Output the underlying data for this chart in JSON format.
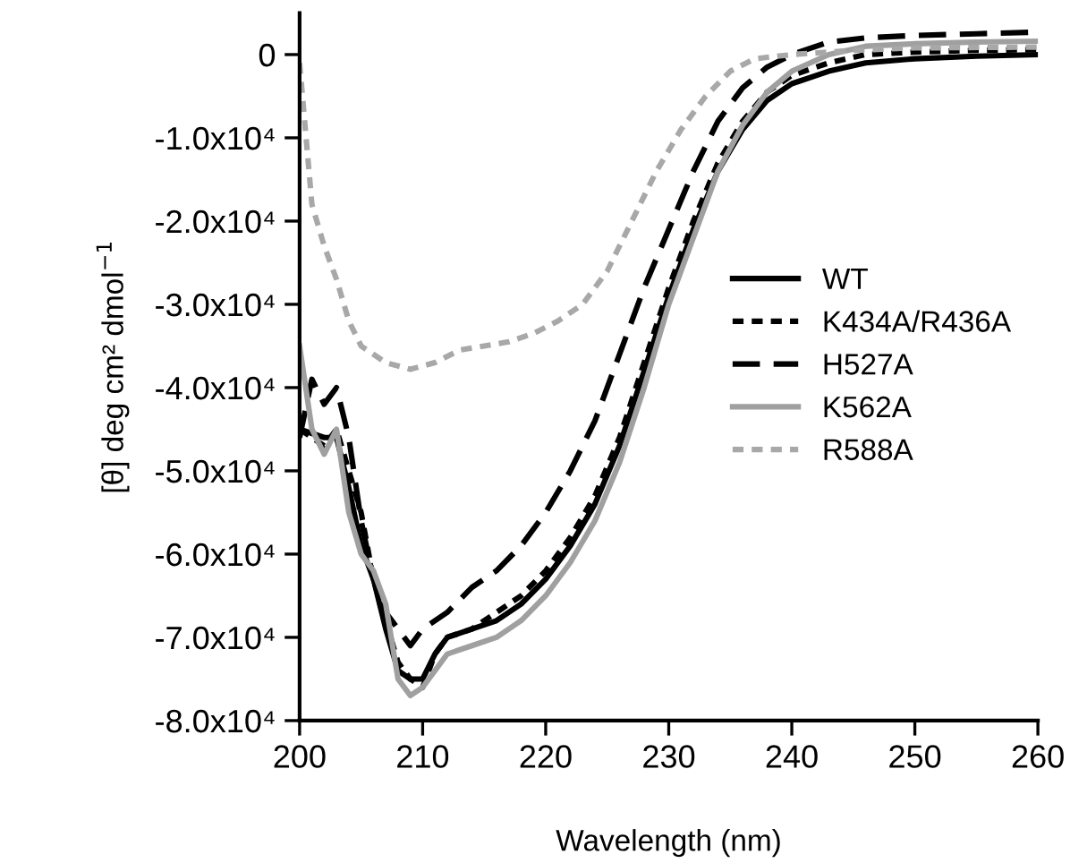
{
  "chart_data": {
    "type": "line",
    "xlabel": "Wavelength (nm)",
    "ylabel": "[θ] deg cm² dmol$^{−1}$",
    "xlim": [
      200,
      260
    ],
    "ylim": [
      -80000,
      5000
    ],
    "xticks": [
      200,
      210,
      220,
      230,
      240,
      250,
      260
    ],
    "yticks": [
      {
        "value": 0,
        "label": "0"
      },
      {
        "value": -10000,
        "label": "-1.0x10⁴"
      },
      {
        "value": -20000,
        "label": "-2.0x10⁴"
      },
      {
        "value": -30000,
        "label": "-3.0x10⁴"
      },
      {
        "value": -40000,
        "label": "-4.0x10⁴"
      },
      {
        "value": -50000,
        "label": "-5.0x10⁴"
      },
      {
        "value": -60000,
        "label": "-6.0x10⁴"
      },
      {
        "value": -70000,
        "label": "-7.0x10⁴"
      },
      {
        "value": -80000,
        "label": "-8.0x10⁴"
      }
    ],
    "grid": false,
    "legend": "center right",
    "marker": "none",
    "series": [
      {
        "name": "WT",
        "color": "#000000",
        "line_style": "solid",
        "x": [
          200,
          202,
          203,
          204,
          205,
          206,
          207,
          208,
          209,
          210,
          211,
          212,
          214,
          216,
          218,
          220,
          222,
          224,
          226,
          228,
          230,
          232,
          234,
          236,
          238,
          240,
          243,
          246,
          250,
          255,
          260
        ],
        "values": [
          -45000,
          -46000,
          -46000,
          -52000,
          -59000,
          -63000,
          -69000,
          -74000,
          -75000,
          -75000,
          -72000,
          -70000,
          -69000,
          -68000,
          -66000,
          -63000,
          -59000,
          -54000,
          -47000,
          -38000,
          -29000,
          -21000,
          -14000,
          -9000,
          -5500,
          -3500,
          -2000,
          -1000,
          -500,
          -200,
          0
        ]
      },
      {
        "name": "K434A/R436A",
        "color": "#000000",
        "line_style": "dotted",
        "x": [
          200,
          201,
          202,
          203,
          204,
          205,
          206,
          207,
          208,
          209,
          210,
          211,
          212,
          214,
          216,
          218,
          220,
          222,
          224,
          226,
          228,
          230,
          232,
          234,
          236,
          238,
          240,
          243,
          246,
          250,
          255,
          260
        ],
        "values": [
          -45000,
          -46000,
          -47000,
          -45000,
          -50000,
          -55000,
          -63000,
          -68000,
          -73000,
          -75000,
          -76000,
          -72000,
          -70000,
          -69000,
          -67000,
          -65000,
          -62000,
          -58000,
          -53000,
          -46000,
          -37000,
          -28000,
          -20000,
          -13000,
          -8000,
          -4500,
          -2500,
          -1000,
          0,
          300,
          500,
          600
        ]
      },
      {
        "name": "H527A",
        "color": "#000000",
        "line_style": "dashed",
        "x": [
          200,
          201,
          202,
          203,
          204,
          205,
          206,
          207,
          208,
          209,
          210,
          212,
          214,
          216,
          218,
          220,
          222,
          224,
          226,
          228,
          230,
          232,
          234,
          236,
          238,
          240,
          243,
          246,
          250,
          255,
          260
        ],
        "values": [
          -46000,
          -39000,
          -42000,
          -40000,
          -46000,
          -56000,
          -63000,
          -67000,
          -69000,
          -71000,
          -69000,
          -67000,
          -64000,
          -62000,
          -59000,
          -55000,
          -50000,
          -44000,
          -36000,
          -28000,
          -21000,
          -14000,
          -8000,
          -4000,
          -1500,
          0,
          1500,
          2000,
          2300,
          2500,
          2700
        ]
      },
      {
        "name": "K562A",
        "color": "#a0a0a0",
        "line_style": "solid",
        "x": [
          200,
          201,
          202,
          203,
          204,
          205,
          206,
          207,
          208,
          209,
          210,
          211,
          212,
          214,
          216,
          218,
          220,
          222,
          224,
          226,
          228,
          230,
          232,
          234,
          236,
          238,
          240,
          243,
          246,
          250,
          255,
          260
        ],
        "values": [
          -35000,
          -45000,
          -48000,
          -45000,
          -55000,
          -60000,
          -62000,
          -66000,
          -75000,
          -77000,
          -76000,
          -74000,
          -72000,
          -71000,
          -70000,
          -68000,
          -65000,
          -61000,
          -56000,
          -49000,
          -40000,
          -30000,
          -22000,
          -14000,
          -8500,
          -4500,
          -2000,
          0,
          1000,
          1300,
          1500,
          1600
        ]
      },
      {
        "name": "R588A",
        "color": "#a8a8a8",
        "line_style": "dotted",
        "x": [
          200,
          201,
          202,
          203,
          204,
          205,
          207,
          209,
          211,
          213,
          215,
          217,
          219,
          221,
          223,
          225,
          227,
          229,
          231,
          233,
          235,
          237,
          240,
          245,
          250,
          260
        ],
        "values": [
          -1000,
          -18000,
          -23000,
          -27000,
          -32000,
          -35000,
          -37000,
          -37800,
          -37000,
          -35500,
          -35000,
          -34500,
          -33500,
          -32000,
          -30000,
          -26000,
          -20000,
          -14000,
          -9000,
          -5000,
          -2000,
          -500,
          0,
          500,
          800,
          900
        ]
      }
    ]
  }
}
